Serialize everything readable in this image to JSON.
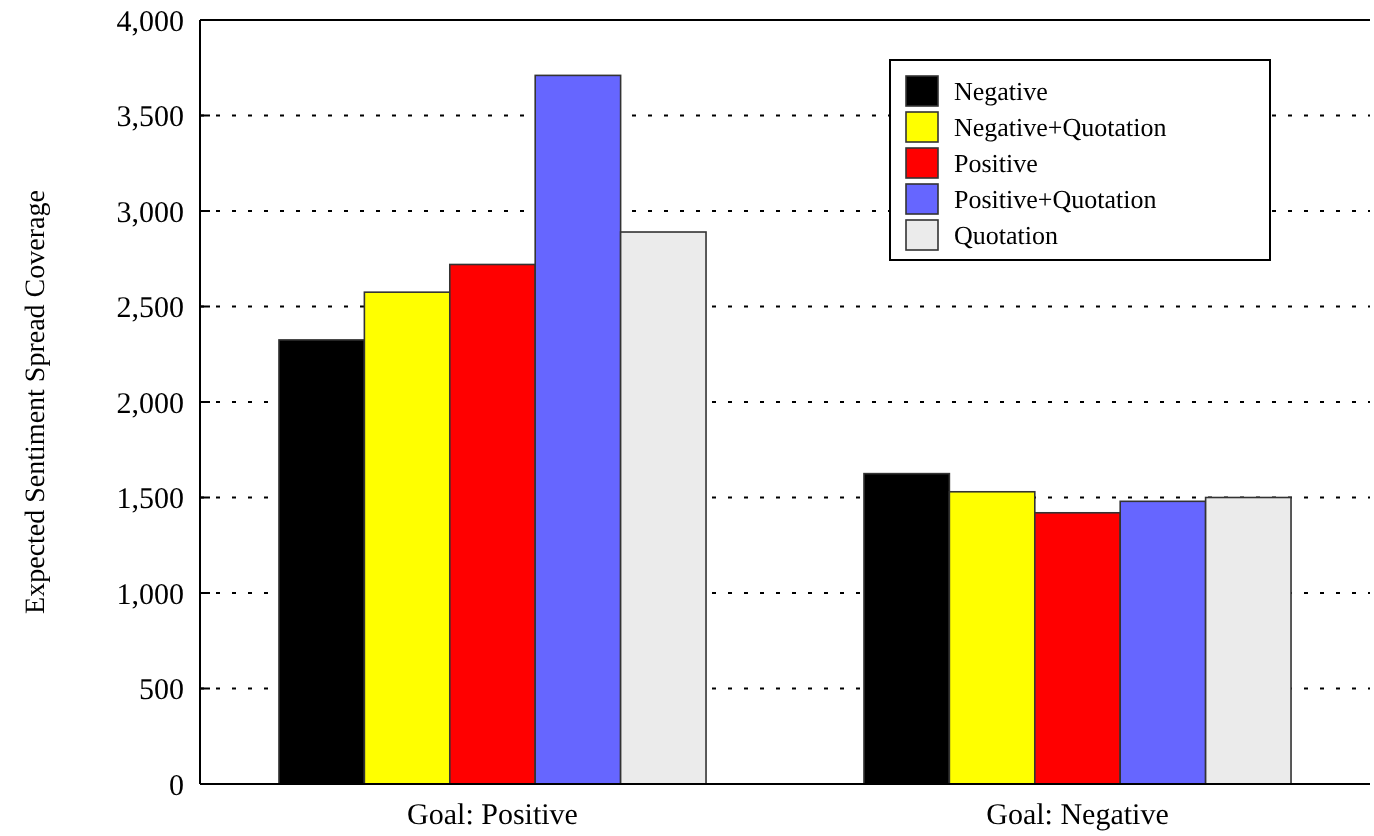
{
  "chart_data": {
    "type": "bar",
    "ylabel": "Expected Sentiment Spread Coverage",
    "categories": [
      "Goal: Positive",
      "Goal: Negative"
    ],
    "series": [
      {
        "name": "Negative",
        "color": "#000000",
        "values": [
          2325,
          1625
        ]
      },
      {
        "name": "Negative+Quotation",
        "color": "#ffff00",
        "values": [
          2575,
          1530
        ]
      },
      {
        "name": "Positive",
        "color": "#ff0000",
        "values": [
          2720,
          1420
        ]
      },
      {
        "name": "Positive+Quotation",
        "color": "#6666ff",
        "values": [
          3710,
          1480
        ]
      },
      {
        "name": "Quotation",
        "color": "#ebebeb",
        "values": [
          2890,
          1500
        ]
      }
    ],
    "ylim": [
      0,
      4000
    ],
    "yticks": [
      {
        "value": 0,
        "label": "0"
      },
      {
        "value": 500,
        "label": "500"
      },
      {
        "value": 1000,
        "label": "1,000"
      },
      {
        "value": 1500,
        "label": "1,500"
      },
      {
        "value": 2000,
        "label": "2,000"
      },
      {
        "value": 2500,
        "label": "2,500"
      },
      {
        "value": 3000,
        "label": "3,000"
      },
      {
        "value": 3500,
        "label": "3,500"
      },
      {
        "value": 4000,
        "label": "4,000"
      }
    ],
    "grid": "y",
    "legend": "top right"
  }
}
